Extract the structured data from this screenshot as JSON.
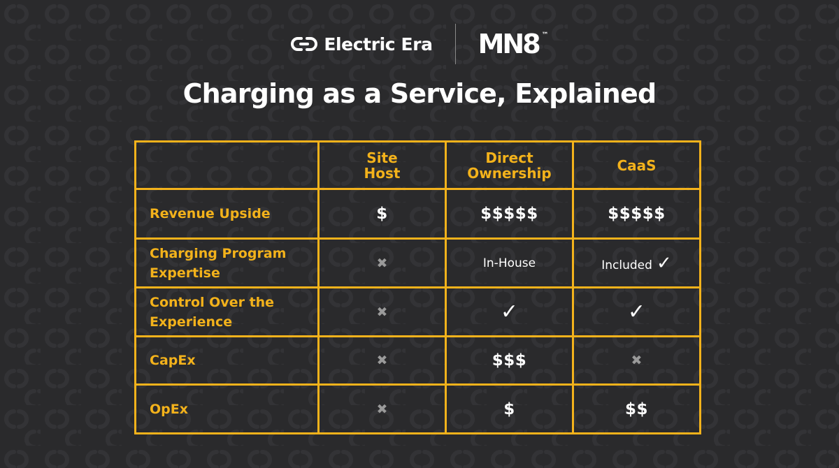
{
  "header": {
    "brand_left": "Electric Era",
    "brand_left_icon": "link-chain-icon",
    "brand_right": "MN8",
    "brand_right_tm": "™"
  },
  "title": "Charging as a Service, Explained",
  "colors": {
    "background": "#2a2a2c",
    "accent": "#f3b21b",
    "text": "#ffffff",
    "muted": "#9a9a9a"
  },
  "table": {
    "columns": [
      "",
      "Site Host",
      "Direct Ownership",
      "CaaS"
    ],
    "rows": [
      {
        "label": "Revenue Upside",
        "site_host": "$",
        "direct_ownership": "$$$$$",
        "caas": "$$$$$"
      },
      {
        "label": "Charging Program Expertise",
        "site_host": "✖",
        "direct_ownership": "In-House",
        "caas": "Included",
        "caas_mark": "✓"
      },
      {
        "label": "Control Over the Experience",
        "site_host": "✖",
        "direct_ownership": "✓",
        "caas": "✓"
      },
      {
        "label": "CapEx",
        "site_host": "✖",
        "direct_ownership": "$$$",
        "caas": "✖"
      },
      {
        "label": "OpEx",
        "site_host": "✖",
        "direct_ownership": "$",
        "caas": "$$"
      }
    ]
  }
}
